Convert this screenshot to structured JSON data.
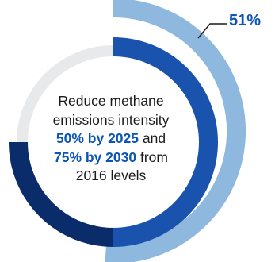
{
  "chart_data": {
    "type": "donut",
    "callout_value_label": "51%",
    "rings": [
      {
        "name": "outer",
        "value_percent": 51,
        "color": "#8fb8de"
      },
      {
        "name": "inner",
        "value_percent": 75,
        "color": "#1a53ad",
        "highlight_color": "#0b2c6b"
      }
    ],
    "track_color": "#e8e9eb"
  },
  "center": {
    "line1": "Reduce methane",
    "line2": "emissions intensity",
    "line3_highlight": "50% by 2025",
    "line3_rest": " and",
    "line4_highlight": "75% by 2030",
    "line4_rest": " from",
    "line5": "2016 levels"
  }
}
